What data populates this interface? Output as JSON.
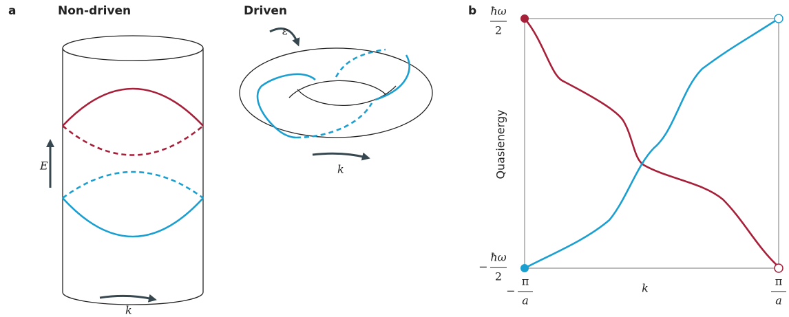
{
  "panel_a": {
    "label": "a",
    "non_driven": {
      "title": "Non-driven",
      "energy_axis": "E",
      "momentum_axis": "k"
    },
    "driven": {
      "title": "Driven",
      "quasienergy_axis": "ε",
      "momentum_axis": "k"
    }
  },
  "panel_b": {
    "label": "b",
    "y_axis_title": "Quasienergy",
    "x_axis_title": "k",
    "y_top": {
      "numerator": "ħω",
      "denominator": "2"
    },
    "y_bottom": {
      "sign": "−",
      "numerator": "ħω",
      "denominator": "2"
    },
    "x_left": {
      "sign": "−",
      "numerator": "π",
      "denominator": "a"
    },
    "x_right": {
      "numerator": "π",
      "denominator": "a"
    }
  }
}
